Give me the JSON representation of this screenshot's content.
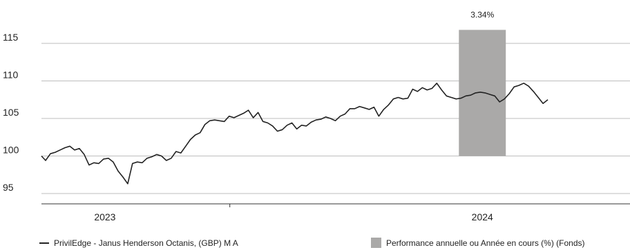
{
  "chart_data": {
    "type": "line",
    "title": "",
    "xlabel": "",
    "ylabel": "",
    "ylim": [
      93,
      117
    ],
    "yticks": [
      95,
      100,
      105,
      110,
      115
    ],
    "grid": "horizontal",
    "xtick_labels": [
      "2023",
      "2024"
    ],
    "x_range": [
      "2022-10-01",
      "2025-01-31"
    ],
    "series": [
      {
        "name": "PrivilEdge - Janus Henderson Octanis, (GBP) M A",
        "color": "#222222",
        "points": [
          [
            "2022-10-01",
            100.0
          ],
          [
            "2022-10-07",
            99.4
          ],
          [
            "2022-10-14",
            100.3
          ],
          [
            "2022-10-21",
            100.5
          ],
          [
            "2022-10-28",
            100.8
          ],
          [
            "2022-11-04",
            101.1
          ],
          [
            "2022-11-11",
            101.3
          ],
          [
            "2022-11-18",
            100.8
          ],
          [
            "2022-11-25",
            101.0
          ],
          [
            "2022-12-02",
            100.2
          ],
          [
            "2022-12-09",
            98.8
          ],
          [
            "2022-12-16",
            99.1
          ],
          [
            "2022-12-23",
            99.0
          ],
          [
            "2022-12-30",
            99.6
          ],
          [
            "2023-01-06",
            99.7
          ],
          [
            "2023-01-13",
            99.2
          ],
          [
            "2023-01-20",
            98.0
          ],
          [
            "2023-01-27",
            97.2
          ],
          [
            "2023-02-03",
            96.3
          ],
          [
            "2023-02-10",
            99.0
          ],
          [
            "2023-02-17",
            99.2
          ],
          [
            "2023-02-24",
            99.1
          ],
          [
            "2023-03-03",
            99.7
          ],
          [
            "2023-03-10",
            99.9
          ],
          [
            "2023-03-17",
            100.2
          ],
          [
            "2023-03-24",
            100.0
          ],
          [
            "2023-03-31",
            99.4
          ],
          [
            "2023-04-07",
            99.7
          ],
          [
            "2023-04-14",
            100.6
          ],
          [
            "2023-04-21",
            100.4
          ],
          [
            "2023-04-28",
            101.3
          ],
          [
            "2023-05-05",
            102.2
          ],
          [
            "2023-05-12",
            102.8
          ],
          [
            "2023-05-19",
            103.1
          ],
          [
            "2023-05-26",
            104.2
          ],
          [
            "2023-06-02",
            104.7
          ],
          [
            "2023-06-09",
            104.8
          ],
          [
            "2023-06-16",
            104.7
          ],
          [
            "2023-06-23",
            104.6
          ],
          [
            "2023-06-30",
            105.3
          ],
          [
            "2023-07-07",
            105.1
          ],
          [
            "2023-07-14",
            105.4
          ],
          [
            "2023-07-21",
            105.7
          ],
          [
            "2023-07-28",
            106.1
          ],
          [
            "2023-08-04",
            105.1
          ],
          [
            "2023-08-11",
            105.8
          ],
          [
            "2023-08-18",
            104.6
          ],
          [
            "2023-08-25",
            104.4
          ],
          [
            "2023-09-01",
            104.0
          ],
          [
            "2023-09-08",
            103.3
          ],
          [
            "2023-09-15",
            103.5
          ],
          [
            "2023-09-22",
            104.1
          ],
          [
            "2023-09-29",
            104.4
          ],
          [
            "2023-10-06",
            103.6
          ],
          [
            "2023-10-13",
            104.1
          ],
          [
            "2023-10-20",
            104.0
          ],
          [
            "2023-10-27",
            104.5
          ],
          [
            "2023-11-03",
            104.8
          ],
          [
            "2023-11-10",
            104.9
          ],
          [
            "2023-11-17",
            105.2
          ],
          [
            "2023-11-24",
            105.0
          ],
          [
            "2023-12-01",
            104.7
          ],
          [
            "2023-12-08",
            105.3
          ],
          [
            "2023-12-15",
            105.6
          ],
          [
            "2023-12-22",
            106.3
          ],
          [
            "2023-12-29",
            106.3
          ],
          [
            "2024-01-05",
            106.6
          ],
          [
            "2024-01-12",
            106.4
          ],
          [
            "2024-01-19",
            106.2
          ],
          [
            "2024-01-26",
            106.5
          ],
          [
            "2024-02-02",
            105.3
          ],
          [
            "2024-02-09",
            106.2
          ],
          [
            "2024-02-16",
            106.8
          ],
          [
            "2024-02-23",
            107.6
          ],
          [
            "2024-03-01",
            107.8
          ],
          [
            "2024-03-08",
            107.6
          ],
          [
            "2024-03-15",
            107.7
          ],
          [
            "2024-03-22",
            108.9
          ],
          [
            "2024-03-29",
            108.6
          ],
          [
            "2024-04-05",
            109.1
          ],
          [
            "2024-04-12",
            108.8
          ],
          [
            "2024-04-19",
            109.0
          ],
          [
            "2024-04-26",
            109.7
          ],
          [
            "2024-05-03",
            108.8
          ],
          [
            "2024-05-10",
            108.0
          ],
          [
            "2024-05-17",
            107.8
          ],
          [
            "2024-05-24",
            107.6
          ],
          [
            "2024-05-31",
            107.7
          ],
          [
            "2024-06-07",
            108.0
          ],
          [
            "2024-06-14",
            108.1
          ],
          [
            "2024-06-21",
            108.4
          ],
          [
            "2024-06-28",
            108.5
          ],
          [
            "2024-07-05",
            108.4
          ],
          [
            "2024-07-12",
            108.2
          ],
          [
            "2024-07-19",
            108.0
          ],
          [
            "2024-07-26",
            107.2
          ],
          [
            "2024-08-02",
            107.6
          ],
          [
            "2024-08-09",
            108.3
          ],
          [
            "2024-08-16",
            109.2
          ],
          [
            "2024-08-23",
            109.4
          ],
          [
            "2024-08-30",
            109.7
          ],
          [
            "2024-09-06",
            109.3
          ],
          [
            "2024-09-13",
            108.6
          ],
          [
            "2024-09-20",
            107.8
          ],
          [
            "2024-09-27",
            107.0
          ],
          [
            "2024-10-04",
            107.5
          ]
        ]
      }
    ],
    "performance_bar": {
      "label": "Performance annuelle ou Année en cours (%) (Fonds)",
      "color": "#aaa9a8",
      "x_start": "2024-05-28",
      "x_end": "2024-08-04",
      "y_bottom": 100,
      "y_top": 116.8,
      "value_label": "3.34%"
    },
    "legend": {
      "placement": "bottom",
      "entries": [
        {
          "label": "PrivilEdge - Janus Henderson Octanis, (GBP) M A",
          "marker": "line",
          "color": "#222222"
        },
        {
          "label": "Performance annuelle ou Année en cours (%) (Fonds)",
          "marker": "square",
          "color": "#aaa9a8"
        }
      ]
    }
  }
}
